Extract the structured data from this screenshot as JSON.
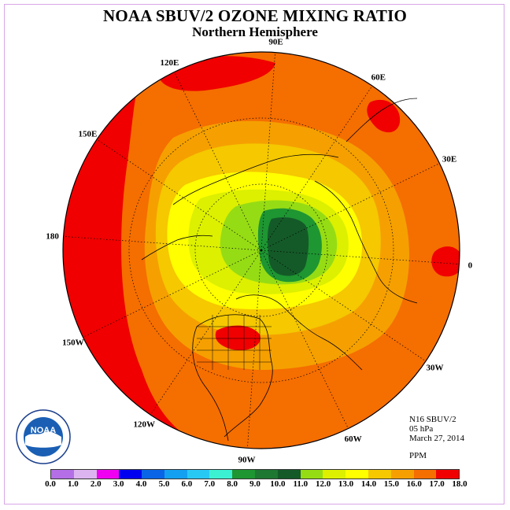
{
  "title": "NOAA SBUV/2 OZONE MIXING RATIO",
  "subtitle": "Northern Hemisphere",
  "longitudes": [
    {
      "label": "90E",
      "deg": 90
    },
    {
      "label": "60E",
      "deg": 60
    },
    {
      "label": "30E",
      "deg": 30
    },
    {
      "label": "0",
      "deg": 0
    },
    {
      "label": "30W",
      "deg": -30
    },
    {
      "label": "60W",
      "deg": -60
    },
    {
      "label": "90W",
      "deg": -90
    },
    {
      "label": "120W",
      "deg": -120
    },
    {
      "label": "150W",
      "deg": -150
    },
    {
      "label": "180",
      "deg": 180
    },
    {
      "label": "150E",
      "deg": 150
    },
    {
      "label": "120E",
      "deg": 120
    }
  ],
  "info": {
    "instrument": "N16 SBUV/2",
    "level": "05 hPa",
    "date": "March 27, 2014",
    "unit": "PPM"
  },
  "colorbar": {
    "ticks": [
      "0.0",
      "1.0",
      "2.0",
      "3.0",
      "4.0",
      "5.0",
      "6.0",
      "7.0",
      "8.0",
      "9.0",
      "10.0",
      "11.0",
      "12.0",
      "13.0",
      "14.0",
      "15.0",
      "16.0",
      "17.0",
      "18.0"
    ],
    "colors": [
      "#b46ee6",
      "#dcb4f0",
      "#f000f0",
      "#0000f0",
      "#0a64e6",
      "#14a0f0",
      "#28c8f5",
      "#3cf0d2",
      "#1e9632",
      "#1e7832",
      "#145a28",
      "#96dc14",
      "#dcf000",
      "#ffff00",
      "#f5c800",
      "#f5a000",
      "#f56e00",
      "#f00000",
      "#a05a32"
    ]
  },
  "logo": {
    "text": "NOAA",
    "ring_text": "NATIONAL OCEANIC AND ATMOSPHERIC ADMINISTRATION · U.S. DEPARTMENT OF COMMERCE"
  }
}
